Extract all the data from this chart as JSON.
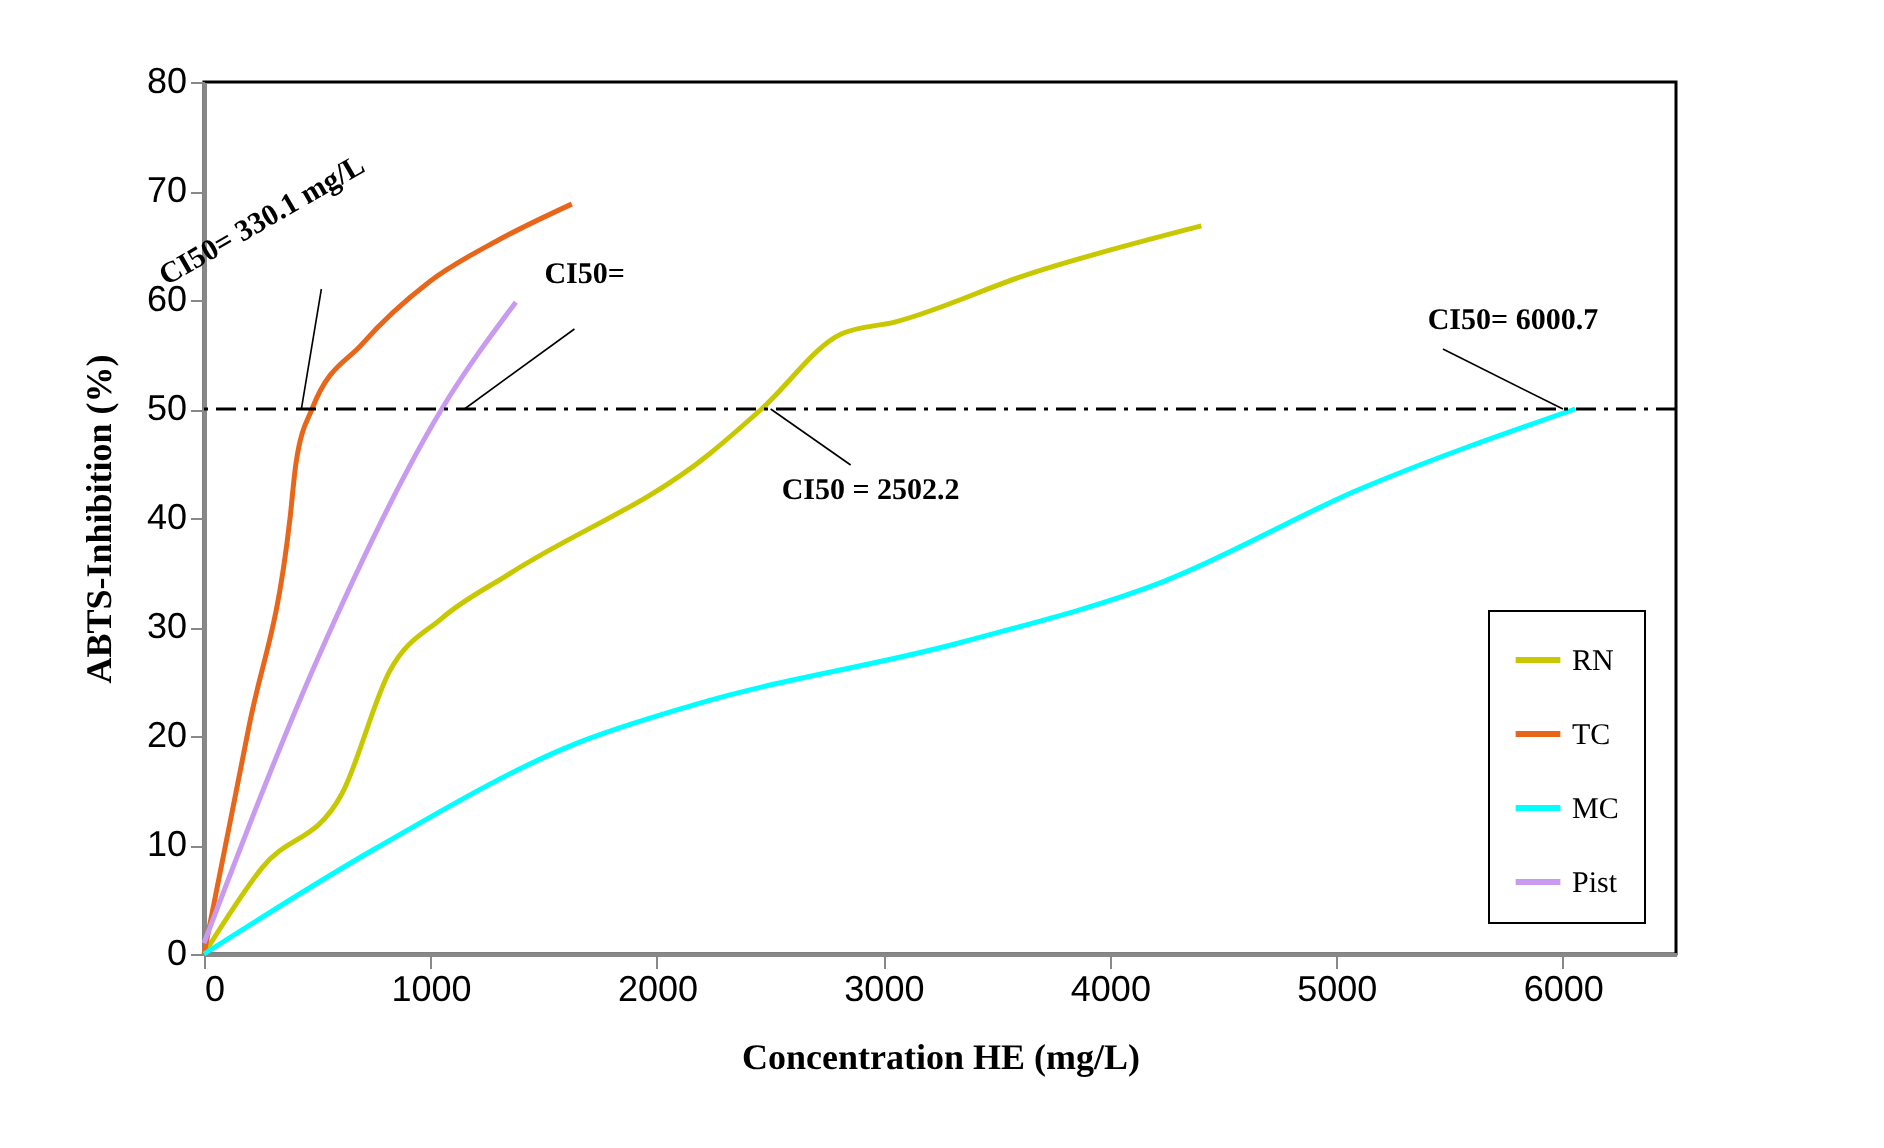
{
  "chart_data": {
    "type": "line",
    "xlabel": "Concentration HE (mg/L)",
    "ylabel": "ABTS-Inhibition (%)",
    "xlim": [
      0,
      6500
    ],
    "xticks": [
      0,
      1000,
      2000,
      3000,
      4000,
      5000,
      6000
    ],
    "ylim": [
      0,
      80
    ],
    "yticks": [
      0,
      10,
      20,
      30,
      40,
      50,
      60,
      70,
      80
    ],
    "grid": false,
    "legend": "bottom right",
    "marker": "none",
    "line_style": "solid",
    "series": [
      {
        "name": "RN",
        "color": "#c8c800",
        "x": [
          0,
          256,
          609,
          821,
          1050,
          1350,
          2233,
          2462,
          2816,
          3054,
          3645,
          4404
        ],
        "values": [
          0,
          7.9,
          14.7,
          26,
          30.8,
          34.9,
          45.9,
          50,
          56.9,
          58,
          62.4,
          66.8
        ]
      },
      {
        "name": "TC",
        "color": "#e8661a",
        "x": [
          0,
          200,
          380,
          406,
          477,
          700,
          997,
          1300,
          1624
        ],
        "values": [
          0,
          21,
          40,
          45,
          50,
          56,
          61.7,
          65.5,
          68.8
        ]
      },
      {
        "name": "MC",
        "color": "#00ffff",
        "x": [
          0,
          759,
          1642,
          2171,
          3345,
          4228,
          5110,
          6055
        ],
        "values": [
          0,
          9.7,
          19.3,
          22.9,
          28.6,
          34.1,
          42.7,
          50
        ]
      },
      {
        "name": "Pist",
        "color": "#c89bf0",
        "x": [
          0,
          500,
          1050,
          1377
        ],
        "values": [
          1,
          27,
          50,
          59.8
        ]
      }
    ],
    "ref_lines": [
      {
        "axis": "y",
        "value": 50,
        "color": "#000000",
        "line_style": "dashed"
      }
    ],
    "annotations": [
      {
        "text": "CI50= 330.1 mg/L",
        "x": 430,
        "y": 50
      },
      {
        "text": "CI50=",
        "x": 1150,
        "y": 50
      },
      {
        "text": "CI50 = 2502.2",
        "x": 2502.2,
        "y": 50
      },
      {
        "text": "CI50= 6000.7",
        "x": 6000.7,
        "y": 50
      }
    ]
  }
}
